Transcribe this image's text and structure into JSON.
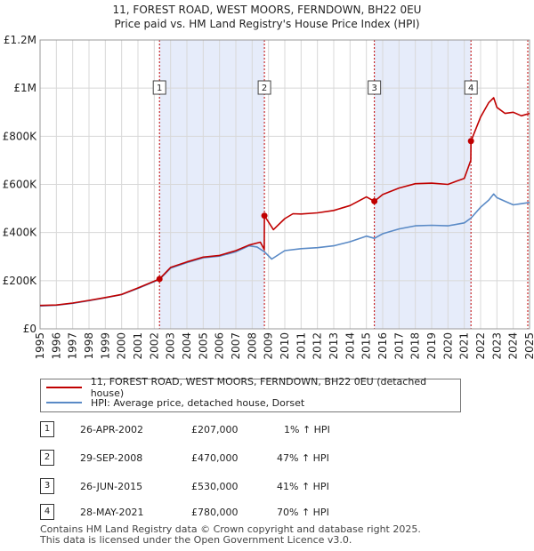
{
  "header": {
    "title_line1": "11, FOREST ROAD, WEST MOORS, FERNDOWN, BH22 0EU",
    "title_line2": "Price paid vs. HM Land Registry's House Price Index (HPI)"
  },
  "chart_data": {
    "type": "line",
    "xlim": [
      1995,
      2025
    ],
    "ylim": [
      0,
      1200000
    ],
    "y_ticks": [
      {
        "value": 0,
        "label": "£0"
      },
      {
        "value": 200000,
        "label": "£200K"
      },
      {
        "value": 400000,
        "label": "£400K"
      },
      {
        "value": 600000,
        "label": "£600K"
      },
      {
        "value": 800000,
        "label": "£800K"
      },
      {
        "value": 1000000,
        "label": "£1M"
      },
      {
        "value": 1200000,
        "label": "£1.2M"
      }
    ],
    "x_ticks": [
      "1995",
      "1996",
      "1997",
      "1998",
      "1999",
      "2000",
      "2001",
      "2002",
      "2003",
      "2004",
      "2005",
      "2006",
      "2007",
      "2008",
      "2009",
      "2010",
      "2011",
      "2012",
      "2013",
      "2014",
      "2015",
      "2016",
      "2017",
      "2018",
      "2019",
      "2020",
      "2021",
      "2022",
      "2023",
      "2024",
      "2025"
    ],
    "colors": {
      "property": "#c00000",
      "hpi": "#5a8ac6",
      "shade": "#e6ecfa",
      "grid": "#d8d8d8"
    },
    "shaded_periods": [
      [
        2002.32,
        2008.75
      ],
      [
        2015.49,
        2021.41
      ]
    ],
    "series": [
      {
        "name": "11, FOREST ROAD, WEST MOORS, FERNDOWN, BH22 0EU (detached house)",
        "x": [
          1995.0,
          1996.0,
          1997.0,
          1998.0,
          1999.0,
          2000.0,
          2001.0,
          2002.0,
          2002.32,
          2003.0,
          2004.0,
          2005.0,
          2006.0,
          2007.0,
          2007.8,
          2008.5,
          2008.74,
          2008.75,
          2009.3,
          2010.0,
          2010.5,
          2011.0,
          2012.0,
          2013.0,
          2014.0,
          2015.0,
          2015.49,
          2016.0,
          2017.0,
          2018.0,
          2019.0,
          2020.0,
          2020.5,
          2021.0,
          2021.4,
          2021.41,
          2022.0,
          2022.5,
          2022.8,
          2023.0,
          2023.5,
          2024.0,
          2024.5,
          2025.0
        ],
        "values": [
          97000,
          99000,
          107000,
          118000,
          130000,
          143000,
          170000,
          198000,
          207000,
          255000,
          278000,
          298000,
          305000,
          325000,
          348000,
          360000,
          330000,
          470000,
          412000,
          458000,
          478000,
          477000,
          482000,
          492000,
          512000,
          548000,
          530000,
          558000,
          585000,
          603000,
          605000,
          600000,
          613000,
          625000,
          700000,
          780000,
          880000,
          940000,
          960000,
          920000,
          895000,
          900000,
          885000,
          895000
        ]
      },
      {
        "name": "HPI: Average price, detached house, Dorset",
        "x": [
          1995.0,
          1996.0,
          1997.0,
          1998.0,
          1999.0,
          2000.0,
          2001.0,
          2002.0,
          2002.32,
          2003.0,
          2004.0,
          2005.0,
          2006.0,
          2007.0,
          2007.8,
          2008.3,
          2008.75,
          2009.2,
          2010.0,
          2011.0,
          2012.0,
          2013.0,
          2014.0,
          2015.0,
          2015.49,
          2016.0,
          2017.0,
          2018.0,
          2019.0,
          2020.0,
          2021.0,
          2021.41,
          2022.0,
          2022.5,
          2022.8,
          2023.0,
          2023.5,
          2024.0,
          2024.5,
          2025.0
        ],
        "values": [
          95000,
          98000,
          106000,
          117000,
          129000,
          142000,
          168000,
          196000,
          205000,
          252000,
          275000,
          295000,
          302000,
          320000,
          345000,
          340000,
          320000,
          290000,
          325000,
          333000,
          337000,
          345000,
          362000,
          385000,
          376000,
          395000,
          415000,
          428000,
          430000,
          428000,
          440000,
          460000,
          505000,
          535000,
          560000,
          545000,
          530000,
          515000,
          520000,
          525000
        ]
      }
    ],
    "markers": [
      {
        "label": "1",
        "x": 2002.32,
        "y": 207000
      },
      {
        "label": "2",
        "x": 2008.75,
        "y": 470000
      },
      {
        "label": "3",
        "x": 2015.49,
        "y": 530000
      },
      {
        "label": "4",
        "x": 2021.41,
        "y": 780000
      }
    ]
  },
  "legend": {
    "property_label": "11, FOREST ROAD, WEST MOORS, FERNDOWN, BH22 0EU (detached house)",
    "hpi_label": "HPI: Average price, detached house, Dorset"
  },
  "transactions": [
    {
      "num": "1",
      "date": "26-APR-2002",
      "price": "£207,000",
      "hpi": "1% ↑ HPI"
    },
    {
      "num": "2",
      "date": "29-SEP-2008",
      "price": "£470,000",
      "hpi": "47% ↑ HPI"
    },
    {
      "num": "3",
      "date": "26-JUN-2015",
      "price": "£530,000",
      "hpi": "41% ↑ HPI"
    },
    {
      "num": "4",
      "date": "28-MAY-2021",
      "price": "£780,000",
      "hpi": "70% ↑ HPI"
    }
  ],
  "footer": {
    "line1": "Contains HM Land Registry data © Crown copyright and database right 2025.",
    "line2": "This data is licensed under the Open Government Licence v3.0."
  }
}
